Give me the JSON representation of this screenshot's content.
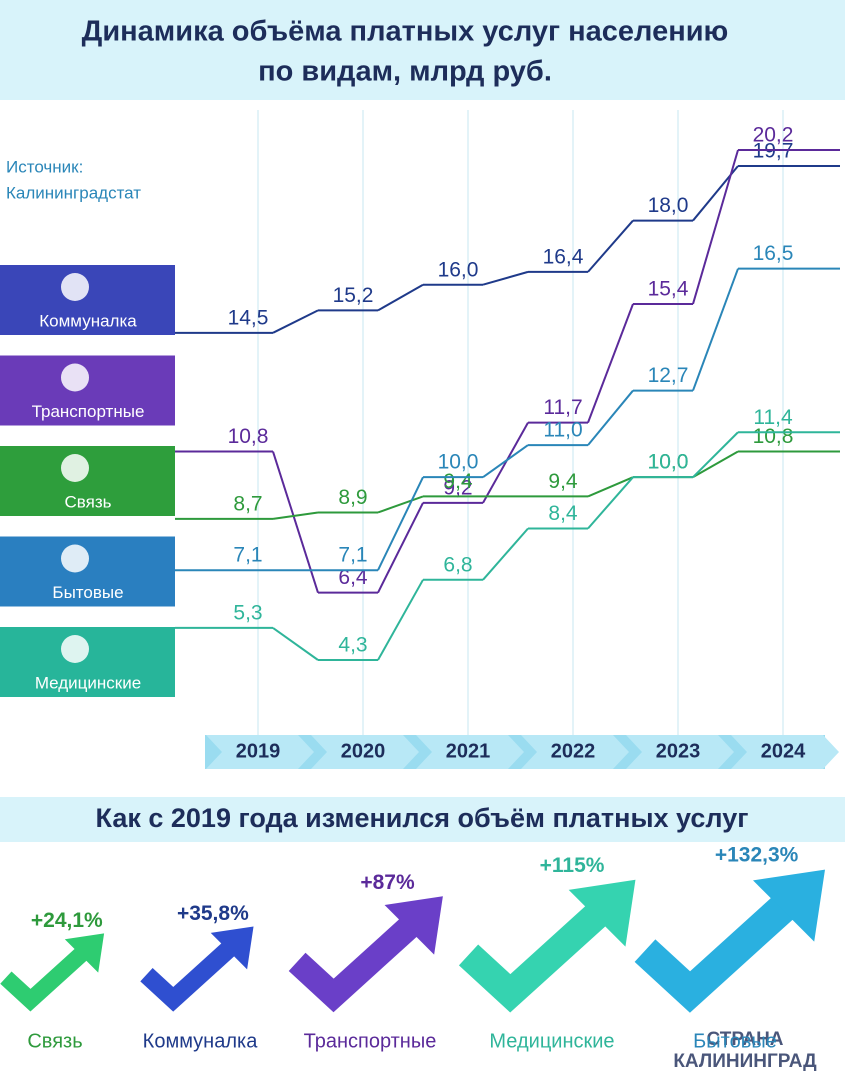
{
  "chart_data": [
    {
      "type": "line",
      "title": [
        "Динамика объёма платных услуг населению",
        "по видам, млрд руб."
      ],
      "source": [
        "Источник:",
        "Калининградстат"
      ],
      "categories": [
        "2019",
        "2020",
        "2021",
        "2022",
        "2023",
        "2024"
      ],
      "series": [
        {
          "name": "Коммуналка",
          "color": "#1f3a8a",
          "box_color": "#3a46b8",
          "values": [
            14.5,
            15.2,
            16.0,
            16.4,
            18.0,
            19.7
          ],
          "value_labels": [
            "14,5",
            "15,2",
            "16,0",
            "16,4",
            "18,0",
            "19,7"
          ]
        },
        {
          "name": "Транспортные",
          "color": "#5b2a9a",
          "box_color": "#6a3bb8",
          "values": [
            10.8,
            6.4,
            9.2,
            11.7,
            15.4,
            20.2
          ],
          "value_labels": [
            "10,8",
            "6,4",
            "9,2",
            "11,7",
            "15,4",
            "20,2"
          ]
        },
        {
          "name": "Связь",
          "color": "#2e9a3c",
          "box_color": "#2e9e3c",
          "values": [
            8.7,
            8.9,
            9.4,
            9.4,
            10.0,
            10.8
          ],
          "value_labels": [
            "8,7",
            "8,9",
            "9,4",
            "9,4",
            "10,0",
            "10,8"
          ]
        },
        {
          "name": "Бытовые",
          "color": "#2a86b8",
          "box_color": "#2a7fc0",
          "values": [
            7.1,
            7.1,
            10.0,
            11.0,
            12.7,
            16.5
          ],
          "value_labels": [
            "7,1",
            "7,1",
            "10,0",
            "11,0",
            "12,7",
            "16,5"
          ]
        },
        {
          "name": "Медицинские",
          "color": "#2fb59a",
          "box_color": "#27b59a",
          "values": [
            5.3,
            4.3,
            6.8,
            8.4,
            10.0,
            11.4
          ],
          "value_labels": [
            "5,3",
            "4,3",
            "6,8",
            "8,4",
            "10,0",
            "11,4"
          ]
        }
      ]
    },
    {
      "type": "pictogram",
      "title": "Как с 2019 года изменился объём платных услуг",
      "categories": [
        "Связь",
        "Коммуналка",
        "Транспортные",
        "Медицинские",
        "Бытовые"
      ],
      "values": [
        24.1,
        35.8,
        87,
        115,
        132.3
      ],
      "value_labels": [
        "+24,1%",
        "+35,8%",
        "+87%",
        "+115%",
        "+132,3%"
      ],
      "colors": [
        "#2ecc71",
        "#2f4fd0",
        "#6a3fc8",
        "#35d3b0",
        "#2ab0e0"
      ],
      "label_colors": [
        "#2e9a3c",
        "#1f3a8a",
        "#5b2a9a",
        "#2fb59a",
        "#2a86b8"
      ]
    }
  ],
  "watermark": [
    "СТРАНА",
    "КАЛИНИНГРАД"
  ]
}
